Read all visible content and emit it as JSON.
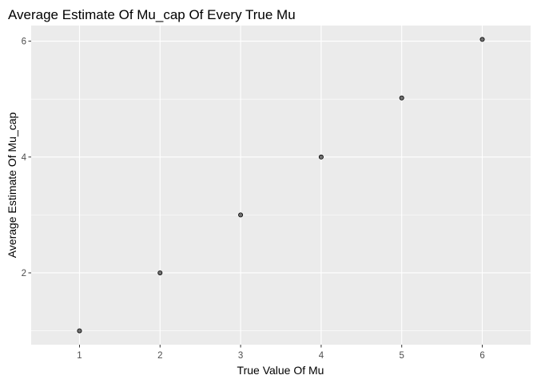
{
  "chart_data": {
    "type": "scatter",
    "title": "Average Estimate Of Mu_cap Of Every True Mu",
    "xlabel": "True Value Of Mu",
    "ylabel": "Average Estimate Of Mu_cap",
    "x": [
      1,
      2,
      3,
      4,
      5,
      6
    ],
    "y": [
      1.0,
      2.0,
      3.0,
      4.0,
      5.02,
      6.03
    ],
    "xlim": [
      0.4,
      6.6
    ],
    "ylim": [
      0.76,
      6.27
    ],
    "xticks": [
      1,
      2,
      3,
      4,
      5,
      6
    ],
    "yticks": [
      2,
      4,
      6
    ],
    "grid": true,
    "colors": {
      "panel": "#ebebeb",
      "grid": "#ffffff",
      "point_fill": "#595959",
      "point_stroke": "#000000",
      "tick": "#333333"
    }
  }
}
